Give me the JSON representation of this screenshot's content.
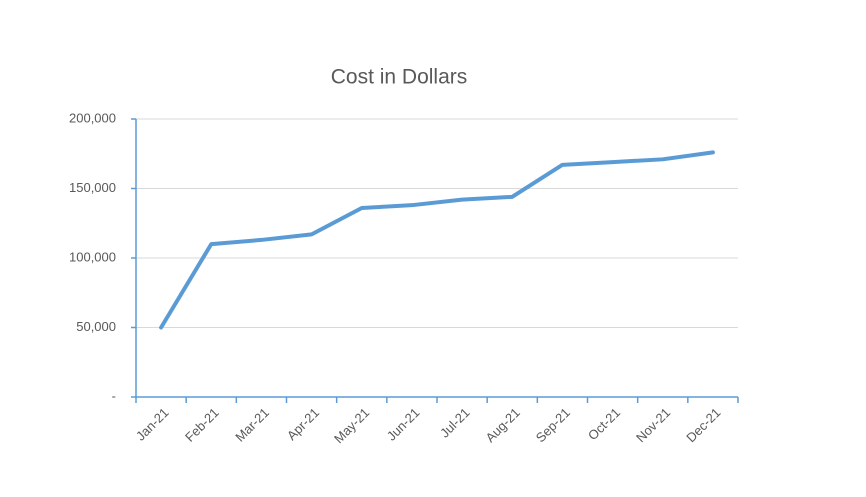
{
  "chart_data": {
    "type": "line",
    "title": "Cost in Dollars",
    "categories": [
      "Jan-21",
      "Feb-21",
      "Mar-21",
      "Apr-21",
      "May-21",
      "Jun-21",
      "Jul-21",
      "Aug-21",
      "Sep-21",
      "Oct-21",
      "Nov-21",
      "Dec-21"
    ],
    "values": [
      50000,
      110000,
      113000,
      117000,
      136000,
      138000,
      142000,
      144000,
      167000,
      169000,
      171000,
      176000
    ],
    "color": "#5b9bd5",
    "ylim": [
      0,
      200000
    ],
    "yticks": [
      {
        "value": 0,
        "label": "-"
      },
      {
        "value": 50000,
        "label": "50,000"
      },
      {
        "value": 100000,
        "label": "100,000"
      },
      {
        "value": 150000,
        "label": "150,000"
      },
      {
        "value": 200000,
        "label": "200,000"
      }
    ],
    "grid": true
  }
}
